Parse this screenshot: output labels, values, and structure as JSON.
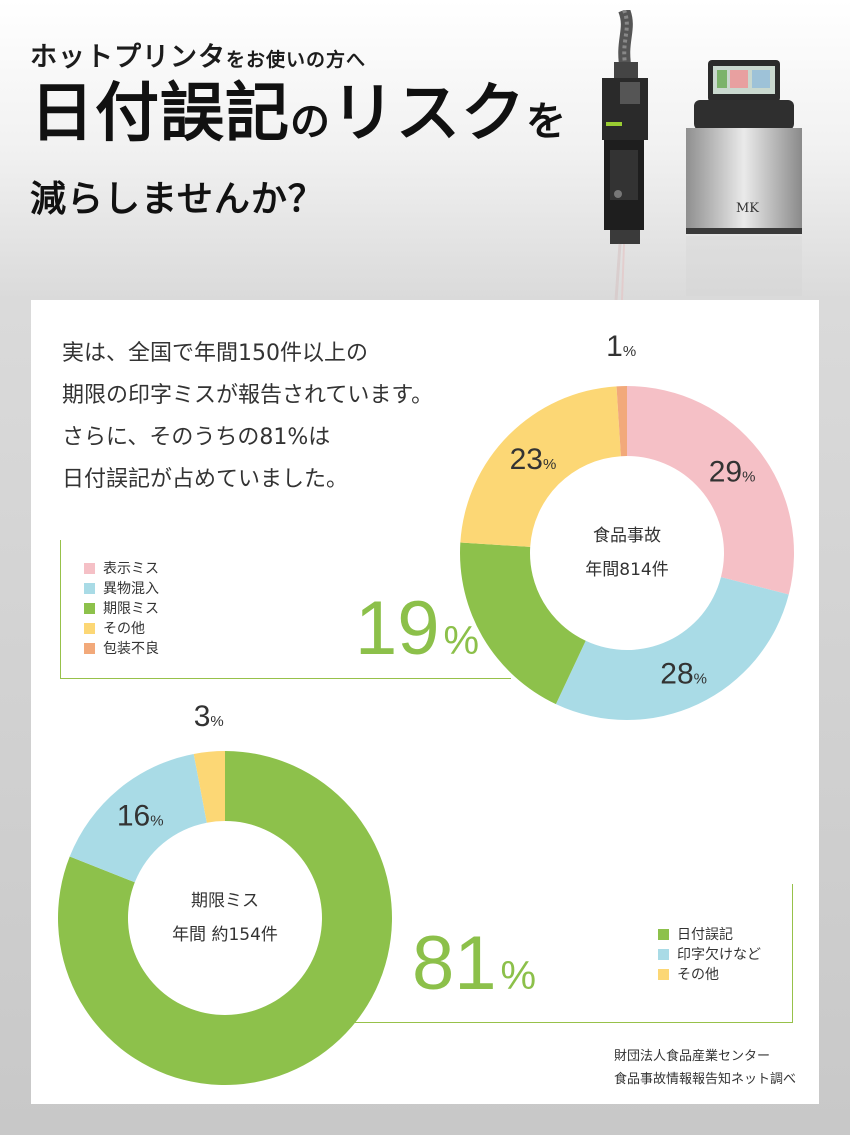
{
  "header": {
    "line1_main": "ホットプリンタ",
    "line1_small": "をお使いの方へ",
    "line2_main1": "日付誤記",
    "line2_small1": "の",
    "line2_main2": "リスク",
    "line2_small2": "を",
    "line3": "減らしませんか？"
  },
  "product_images": {
    "printer_badge": "MK"
  },
  "intro": [
    "実は、全国で年間150件以上の",
    "期限の印字ミスが報告されています。",
    "さらに、そのうちの81%は",
    "日付誤記が占めていました。"
  ],
  "chart_data": [
    {
      "type": "pie",
      "donut": true,
      "center_text": [
        "食品事故",
        "年間814件"
      ],
      "slices": [
        {
          "label": "表示ミス",
          "value": 29,
          "color": "#f5c0c6"
        },
        {
          "label": "異物混入",
          "value": 28,
          "color": "#a9dbe6"
        },
        {
          "label": "期限ミス",
          "value": 19,
          "color": "#8dc14b"
        },
        {
          "label": "その他",
          "value": 23,
          "color": "#fcd775"
        },
        {
          "label": "包装不良",
          "value": 1,
          "color": "#f2a97a"
        }
      ],
      "highlight_label": {
        "value": "19",
        "unit": "%"
      }
    },
    {
      "type": "pie",
      "donut": true,
      "center_text": [
        "期限ミス",
        "年間 約154件"
      ],
      "slices": [
        {
          "label": "日付誤記",
          "value": 81,
          "color": "#8dc14b"
        },
        {
          "label": "印字欠けなど",
          "value": 16,
          "color": "#a9dbe6"
        },
        {
          "label": "その他",
          "value": 3,
          "color": "#fcd775"
        }
      ],
      "highlight_label": {
        "value": "81",
        "unit": "%"
      }
    }
  ],
  "source": [
    "財団法人食品産業センター",
    "食品事故情報報告知ネット調べ"
  ]
}
